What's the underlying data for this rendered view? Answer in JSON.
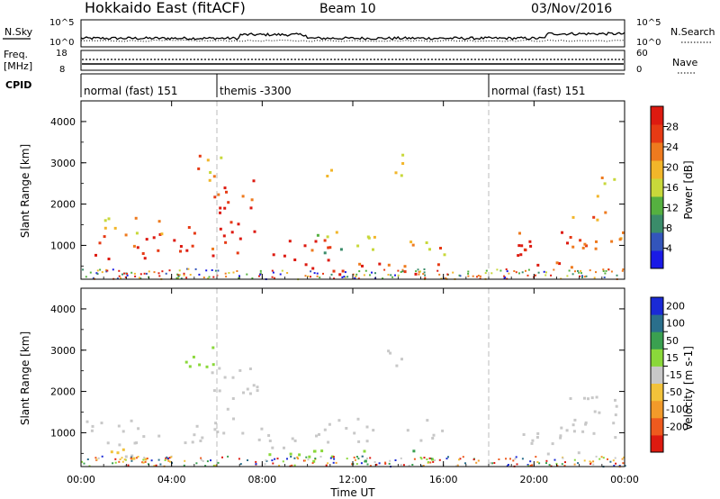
{
  "header": {
    "station": "Hokkaido East (fitACF)",
    "beam": "Beam 10",
    "date": "03/Nov/2016"
  },
  "summary_panels": {
    "nsky_label": "N.Sky",
    "nsky_ticks": [
      "10^5",
      "10^0"
    ],
    "nsearch_label": "N.Search",
    "nsearch_ticks": [
      "10^5",
      "10^0"
    ],
    "freq_label_1": "Freq.",
    "freq_label_2": "[MHz]",
    "freq_ticks": [
      "18",
      "8"
    ],
    "nave_label": "Nave",
    "nave_ticks": [
      "60",
      "0"
    ],
    "cpid_label": "CPID",
    "cpid_segments": [
      {
        "label": "normal (fast) 151",
        "start_hour": 0,
        "end_hour": 6
      },
      {
        "label": "themis -3300",
        "start_hour": 6,
        "end_hour": 18
      },
      {
        "label": "normal (fast) 151",
        "start_hour": 18,
        "end_hour": 24
      }
    ]
  },
  "x_axis": {
    "label": "Time UT",
    "ticks": [
      "00:00",
      "04:00",
      "08:00",
      "12:00",
      "16:00",
      "20:00",
      "00:00"
    ]
  },
  "y_axis": {
    "label": "Slant Range [km]",
    "ticks": [
      "1000",
      "2000",
      "3000",
      "4000"
    ]
  },
  "power_scale": {
    "label": "Power [dB]",
    "ticks": [
      "4",
      "8",
      "12",
      "16",
      "20",
      "24",
      "28"
    ],
    "colors": [
      "#1a1ae6",
      "#3355bb",
      "#3a8c6a",
      "#55b040",
      "#c8d83a",
      "#f2b62a",
      "#ee7a1e",
      "#e63a14",
      "#dd1a10"
    ]
  },
  "velocity_scale": {
    "label": "Velocity [m s-1]",
    "ticks": [
      "200",
      "100",
      "50",
      "15",
      "-15",
      "-50",
      "-100",
      "-200"
    ],
    "colors": [
      "#1a2ad6",
      "#2a6f8c",
      "#3aa050",
      "#8ad83a",
      "#c8c8c8",
      "#f2c23a",
      "#f29a2a",
      "#ee5a1e",
      "#dd1a10"
    ]
  },
  "chart_data": [
    {
      "type": "heatmap",
      "title": "Power",
      "xlabel": "Time UT",
      "ylabel": "Slant Range [km]",
      "xlim": [
        0,
        24
      ],
      "ylim": [
        180,
        4500
      ],
      "value_label": "Power [dB]",
      "cmin": 0,
      "cmax": 30,
      "regions": [
        {
          "t0": 0.2,
          "t1": 6.0,
          "r0": 700,
          "r1": 1350,
          "v": 26
        },
        {
          "t0": 1.0,
          "t1": 5.2,
          "r0": 1300,
          "r1": 1700,
          "v": 20
        },
        {
          "t0": 5.7,
          "t1": 7.8,
          "r0": 800,
          "r1": 2600,
          "v": 27
        },
        {
          "t0": 4.2,
          "t1": 6.2,
          "r0": 2600,
          "r1": 3200,
          "v": 20
        },
        {
          "t0": 7.8,
          "t1": 11.0,
          "r0": 600,
          "r1": 1200,
          "v": 26
        },
        {
          "t0": 8.0,
          "t1": 16.0,
          "r0": 300,
          "r1": 600,
          "v": 27
        },
        {
          "t0": 10.0,
          "t1": 13.0,
          "r0": 800,
          "r1": 1400,
          "v": 14
        },
        {
          "t0": 14.3,
          "t1": 16.2,
          "r0": 800,
          "r1": 1400,
          "v": 20
        },
        {
          "t0": 10.8,
          "t1": 11.6,
          "r0": 2600,
          "r1": 3100,
          "v": 18
        },
        {
          "t0": 13.5,
          "t1": 14.6,
          "r0": 2600,
          "r1": 3300,
          "v": 19
        },
        {
          "t0": 19.2,
          "t1": 22.5,
          "r0": 500,
          "r1": 1400,
          "v": 27
        },
        {
          "t0": 21.5,
          "t1": 24.0,
          "r0": 900,
          "r1": 2000,
          "v": 21
        },
        {
          "t0": 22.5,
          "t1": 24.0,
          "r0": 2200,
          "r1": 2700,
          "v": 18
        }
      ]
    },
    {
      "type": "heatmap",
      "title": "Velocity",
      "xlabel": "Time UT",
      "ylabel": "Slant Range [km]",
      "xlim": [
        0,
        24
      ],
      "ylim": [
        180,
        4500
      ],
      "value_label": "Velocity [m s-1]",
      "cmin": -200,
      "cmax": 200,
      "regions": [
        {
          "t0": 0.2,
          "t1": 6.0,
          "r0": 700,
          "r1": 1350,
          "v": 0
        },
        {
          "t0": 5.7,
          "t1": 7.8,
          "r0": 800,
          "r1": 2600,
          "v": 0
        },
        {
          "t0": 4.2,
          "t1": 6.2,
          "r0": 2600,
          "r1": 3200,
          "v": -40
        },
        {
          "t0": 7.8,
          "t1": 11.0,
          "r0": 600,
          "r1": 1200,
          "v": 0
        },
        {
          "t0": 8.0,
          "t1": 16.0,
          "r0": 300,
          "r1": 600,
          "v": -60
        },
        {
          "t0": 10.0,
          "t1": 13.0,
          "r0": 800,
          "r1": 1400,
          "v": 0
        },
        {
          "t0": 14.3,
          "t1": 16.2,
          "r0": 800,
          "r1": 1400,
          "v": 0
        },
        {
          "t0": 13.5,
          "t1": 14.6,
          "r0": 2600,
          "r1": 3300,
          "v": 0
        },
        {
          "t0": 19.2,
          "t1": 22.5,
          "r0": 500,
          "r1": 1400,
          "v": 0
        },
        {
          "t0": 21.5,
          "t1": 24.0,
          "r0": 900,
          "r1": 2000,
          "v": 0
        },
        {
          "t0": 1.0,
          "t1": 3.5,
          "r0": 200,
          "r1": 700,
          "v": 30
        }
      ]
    }
  ]
}
